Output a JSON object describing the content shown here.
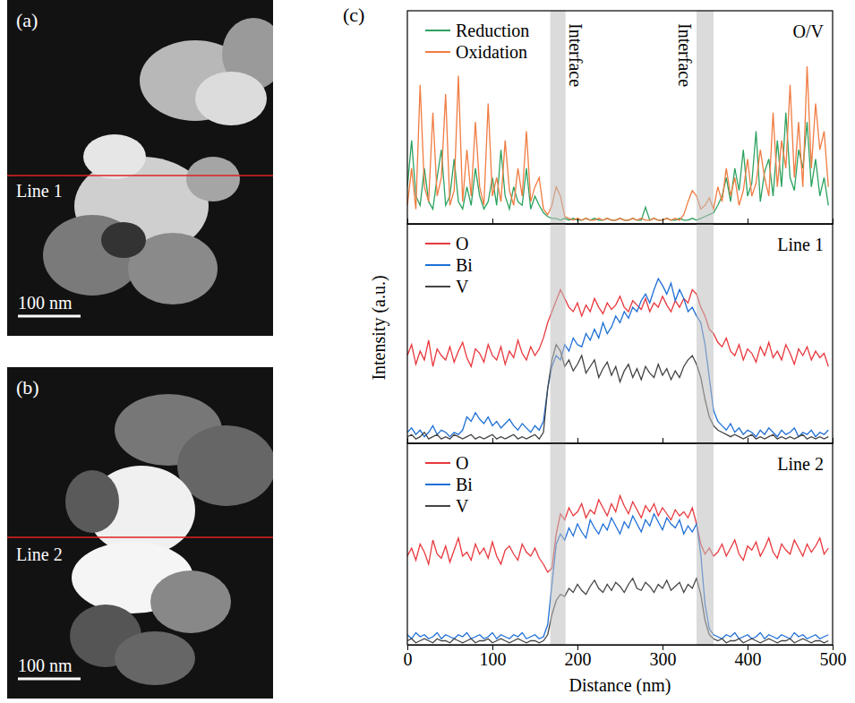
{
  "chart_data": [
    {
      "type": "image",
      "panel": "(a)",
      "label": "Line 1",
      "scale_bar": "100 nm"
    },
    {
      "type": "image",
      "panel": "(b)",
      "label": "Line 2",
      "scale_bar": "100 nm"
    },
    {
      "type": "line",
      "panel": "(c)",
      "title": "O/V",
      "x": [
        0,
        5,
        10,
        15,
        20,
        25,
        30,
        35,
        40,
        45,
        50,
        55,
        60,
        65,
        70,
        75,
        80,
        85,
        90,
        95,
        100,
        105,
        110,
        115,
        120,
        125,
        130,
        135,
        140,
        145,
        150,
        155,
        160,
        165,
        170,
        175,
        180,
        185,
        190,
        195,
        200,
        205,
        210,
        215,
        220,
        225,
        230,
        235,
        240,
        245,
        250,
        255,
        260,
        265,
        270,
        275,
        280,
        285,
        290,
        295,
        300,
        305,
        310,
        315,
        320,
        325,
        330,
        335,
        340,
        345,
        350,
        355,
        360,
        365,
        370,
        375,
        380,
        385,
        390,
        395,
        400,
        405,
        410,
        415,
        420,
        425,
        430,
        435,
        440,
        445,
        450,
        455,
        460,
        465,
        470,
        475,
        480,
        485,
        490,
        495
      ],
      "xlim": [
        0,
        500
      ],
      "xticks": [
        0,
        100,
        200,
        300,
        400,
        500
      ],
      "ylim": [
        0,
        115
      ],
      "tick_labels": false,
      "legend": "upper left",
      "bands": [
        [
          168,
          186
        ],
        [
          340,
          360
        ]
      ],
      "annotations": [
        "Interface",
        "Interface"
      ],
      "series": [
        {
          "name": "Reduction",
          "color": "#2ca25f",
          "values": [
            20,
            45,
            15,
            10,
            30,
            12,
            8,
            25,
            40,
            10,
            15,
            35,
            12,
            8,
            20,
            10,
            30,
            15,
            8,
            12,
            25,
            10,
            40,
            15,
            8,
            20,
            12,
            10,
            30,
            8,
            15,
            10,
            6,
            4,
            3,
            3,
            2,
            3,
            2,
            3,
            2,
            2,
            3,
            2,
            3,
            2,
            2,
            3,
            2,
            2,
            3,
            2,
            2,
            3,
            2,
            2,
            9,
            2,
            3,
            2,
            2,
            3,
            2,
            2,
            3,
            2,
            2,
            3,
            2,
            3,
            4,
            5,
            6,
            10,
            15,
            25,
            12,
            30,
            18,
            40,
            15,
            22,
            50,
            12,
            28,
            35,
            15,
            45,
            20,
            60,
            25,
            18,
            40,
            30,
            55,
            20,
            35,
            15,
            25,
            10
          ]
        },
        {
          "name": "Oxidation",
          "color": "#f07c42",
          "values": [
            10,
            30,
            8,
            75,
            20,
            12,
            60,
            15,
            25,
            70,
            10,
            18,
            80,
            12,
            40,
            15,
            55,
            20,
            10,
            65,
            15,
            25,
            12,
            45,
            18,
            10,
            30,
            15,
            50,
            12,
            20,
            25,
            8,
            5,
            10,
            20,
            15,
            4,
            3,
            2,
            3,
            2,
            3,
            2,
            2,
            3,
            2,
            3,
            2,
            2,
            3,
            2,
            2,
            3,
            2,
            3,
            2,
            2,
            3,
            2,
            2,
            3,
            2,
            3,
            2,
            5,
            12,
            18,
            15,
            8,
            10,
            14,
            8,
            20,
            12,
            30,
            15,
            25,
            10,
            18,
            35,
            15,
            22,
            40,
            25,
            15,
            60,
            20,
            45,
            30,
            75,
            25,
            55,
            20,
            85,
            30,
            65,
            40,
            50,
            20
          ]
        }
      ]
    },
    {
      "type": "line",
      "title": "Line 1",
      "y_label": "Intensity (a.u.)",
      "x": [
        0,
        5,
        10,
        15,
        20,
        25,
        30,
        35,
        40,
        45,
        50,
        55,
        60,
        65,
        70,
        75,
        80,
        85,
        90,
        95,
        100,
        105,
        110,
        115,
        120,
        125,
        130,
        135,
        140,
        145,
        150,
        155,
        160,
        165,
        170,
        175,
        180,
        185,
        190,
        195,
        200,
        205,
        210,
        215,
        220,
        225,
        230,
        235,
        240,
        245,
        250,
        255,
        260,
        265,
        270,
        275,
        280,
        285,
        290,
        295,
        300,
        305,
        310,
        315,
        320,
        325,
        330,
        335,
        340,
        345,
        350,
        355,
        360,
        365,
        370,
        375,
        380,
        385,
        390,
        395,
        400,
        405,
        410,
        415,
        420,
        425,
        430,
        435,
        440,
        445,
        450,
        455,
        460,
        465,
        470,
        475,
        480,
        485,
        490,
        495
      ],
      "xlim": [
        0,
        500
      ],
      "xticks": [
        0,
        100,
        200,
        300,
        400,
        500
      ],
      "ylim": [
        0,
        100
      ],
      "tick_labels": false,
      "legend": "upper left",
      "bands": [
        [
          168,
          186
        ],
        [
          340,
          360
        ]
      ],
      "series": [
        {
          "name": "O",
          "color": "#e8383d",
          "values": [
            40,
            45,
            36,
            42,
            38,
            47,
            35,
            43,
            40,
            38,
            44,
            37,
            42,
            46,
            39,
            35,
            43,
            41,
            37,
            45,
            40,
            38,
            44,
            36,
            42,
            39,
            47,
            41,
            38,
            44,
            40,
            43,
            48,
            55,
            60,
            65,
            70,
            66,
            62,
            60,
            64,
            58,
            63,
            60,
            66,
            62,
            59,
            64,
            61,
            63,
            67,
            62,
            60,
            65,
            63,
            61,
            66,
            60,
            64,
            62,
            67,
            63,
            60,
            65,
            62,
            66,
            64,
            70,
            68,
            62,
            58,
            52,
            50,
            46,
            44,
            48,
            42,
            40,
            45,
            38,
            43,
            41,
            37,
            44,
            40,
            46,
            39,
            42,
            38,
            45,
            41,
            36,
            43,
            40,
            44,
            38,
            42,
            39,
            41,
            35
          ]
        },
        {
          "name": "Bi",
          "color": "#1f6fd6",
          "values": [
            5,
            7,
            4,
            6,
            3,
            5,
            8,
            4,
            6,
            5,
            3,
            5,
            4,
            6,
            12,
            10,
            14,
            11,
            9,
            12,
            8,
            10,
            7,
            9,
            11,
            8,
            6,
            9,
            7,
            5,
            8,
            6,
            10,
            25,
            35,
            40,
            38,
            45,
            42,
            48,
            45,
            44,
            50,
            47,
            52,
            48,
            55,
            50,
            53,
            58,
            55,
            60,
            57,
            62,
            60,
            65,
            68,
            64,
            70,
            75,
            72,
            68,
            73,
            65,
            70,
            66,
            60,
            62,
            58,
            55,
            45,
            30,
            15,
            10,
            8,
            6,
            9,
            5,
            7,
            4,
            6,
            5,
            3,
            6,
            4,
            7,
            5,
            3,
            6,
            4,
            5,
            7,
            3,
            5,
            4,
            6,
            3,
            5,
            4,
            6
          ]
        },
        {
          "name": "V",
          "color": "#444444",
          "values": [
            3,
            4,
            2,
            3,
            5,
            2,
            3,
            4,
            2,
            3,
            2,
            4,
            3,
            2,
            3,
            4,
            2,
            3,
            2,
            3,
            4,
            2,
            3,
            2,
            3,
            4,
            2,
            3,
            2,
            3,
            4,
            2,
            5,
            25,
            38,
            45,
            42,
            35,
            38,
            33,
            36,
            40,
            32,
            35,
            38,
            30,
            34,
            37,
            31,
            35,
            28,
            33,
            36,
            30,
            34,
            29,
            35,
            32,
            30,
            36,
            31,
            34,
            29,
            33,
            30,
            35,
            38,
            40,
            36,
            30,
            20,
            12,
            8,
            6,
            5,
            4,
            3,
            4,
            3,
            2,
            3,
            4,
            2,
            3,
            2,
            3,
            4,
            2,
            3,
            2,
            3,
            2,
            3,
            4,
            2,
            3,
            2,
            3,
            2,
            3
          ]
        }
      ]
    },
    {
      "type": "line",
      "title": "Line 2",
      "x_label": "Distance (nm)",
      "x": [
        0,
        5,
        10,
        15,
        20,
        25,
        30,
        35,
        40,
        45,
        50,
        55,
        60,
        65,
        70,
        75,
        80,
        85,
        90,
        95,
        100,
        105,
        110,
        115,
        120,
        125,
        130,
        135,
        140,
        145,
        150,
        155,
        160,
        165,
        170,
        175,
        180,
        185,
        190,
        195,
        200,
        205,
        210,
        215,
        220,
        225,
        230,
        235,
        240,
        245,
        250,
        255,
        260,
        265,
        270,
        275,
        280,
        285,
        290,
        295,
        300,
        305,
        310,
        315,
        320,
        325,
        330,
        335,
        340,
        345,
        350,
        355,
        360,
        365,
        370,
        375,
        380,
        385,
        390,
        395,
        400,
        405,
        410,
        415,
        420,
        425,
        430,
        435,
        440,
        445,
        450,
        455,
        460,
        465,
        470,
        475,
        480,
        485,
        490,
        495
      ],
      "xlim": [
        0,
        500
      ],
      "xticks": [
        0,
        100,
        200,
        300,
        400,
        500
      ],
      "ylim": [
        0,
        100
      ],
      "tick_labels": "x",
      "legend": "upper left",
      "bands": [
        [
          168,
          186
        ],
        [
          340,
          360
        ]
      ],
      "series": [
        {
          "name": "O",
          "color": "#e8383d",
          "values": [
            44,
            48,
            42,
            50,
            46,
            40,
            52,
            45,
            43,
            49,
            41,
            47,
            53,
            44,
            46,
            42,
            50,
            45,
            48,
            43,
            51,
            44,
            40,
            47,
            49,
            45,
            42,
            50,
            46,
            44,
            48,
            43,
            40,
            36,
            38,
            55,
            65,
            62,
            68,
            64,
            66,
            70,
            63,
            67,
            65,
            72,
            68,
            64,
            70,
            66,
            74,
            69,
            65,
            71,
            67,
            63,
            69,
            66,
            70,
            64,
            68,
            65,
            62,
            67,
            64,
            66,
            63,
            68,
            60,
            50,
            45,
            48,
            44,
            46,
            50,
            44,
            48,
            52,
            45,
            42,
            49,
            47,
            51,
            44,
            48,
            53,
            46,
            43,
            50,
            47,
            45,
            52,
            48,
            44,
            50,
            46,
            49,
            53,
            45,
            48
          ]
        },
        {
          "name": "Bi",
          "color": "#1f6fd6",
          "values": [
            5,
            3,
            6,
            4,
            5,
            3,
            4,
            6,
            3,
            5,
            4,
            3,
            5,
            4,
            6,
            3,
            4,
            5,
            3,
            4,
            6,
            3,
            5,
            4,
            3,
            5,
            4,
            6,
            3,
            4,
            5,
            3,
            4,
            10,
            30,
            50,
            55,
            52,
            58,
            54,
            60,
            56,
            53,
            62,
            58,
            55,
            60,
            57,
            63,
            59,
            55,
            61,
            58,
            64,
            60,
            56,
            62,
            59,
            65,
            61,
            57,
            63,
            60,
            58,
            62,
            55,
            59,
            56,
            60,
            45,
            20,
            8,
            5,
            4,
            3,
            5,
            4,
            6,
            3,
            4,
            5,
            3,
            4,
            6,
            3,
            5,
            4,
            3,
            5,
            4,
            3,
            6,
            4,
            5,
            3,
            4,
            5,
            3,
            4,
            5
          ]
        },
        {
          "name": "V",
          "color": "#444444",
          "values": [
            2,
            3,
            1,
            2,
            3,
            2,
            1,
            3,
            2,
            2,
            1,
            3,
            2,
            1,
            2,
            3,
            1,
            2,
            2,
            3,
            1,
            2,
            3,
            2,
            1,
            2,
            3,
            2,
            1,
            2,
            2,
            1,
            2,
            5,
            15,
            22,
            25,
            24,
            28,
            26,
            30,
            27,
            25,
            29,
            32,
            28,
            26,
            30,
            27,
            31,
            29,
            26,
            30,
            33,
            28,
            27,
            31,
            29,
            26,
            30,
            28,
            32,
            27,
            29,
            31,
            26,
            30,
            28,
            33,
            25,
            12,
            5,
            3,
            2,
            3,
            1,
            2,
            2,
            3,
            1,
            2,
            3,
            2,
            1,
            2,
            3,
            2,
            1,
            2,
            2,
            3,
            1,
            2,
            3,
            2,
            1,
            2,
            2,
            1,
            2
          ]
        }
      ]
    }
  ]
}
